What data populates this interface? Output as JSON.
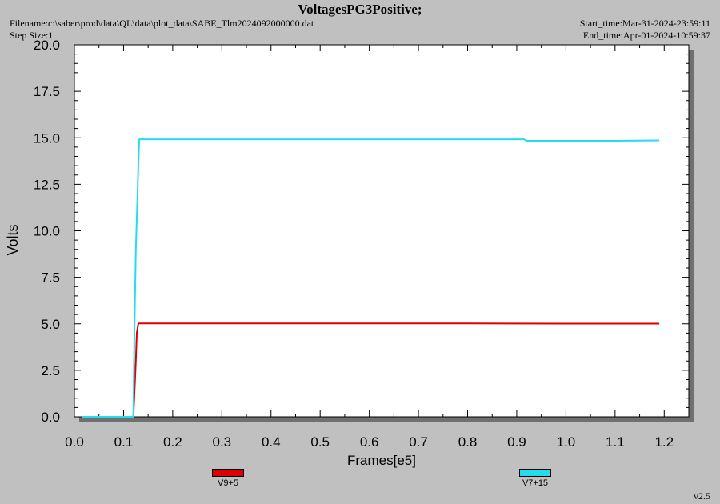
{
  "header": {
    "title": "VoltagesPG3Positive;",
    "filename": "Filename:c:\\saber\\prod\\data\\QL\\data\\plot_data\\SABE_Tlm2024092000000.dat",
    "step_size": "Step Size:1",
    "start_time": "Start_time:Mar-31-2024-23:59:11",
    "end_time": "End_time:Apr-01-2024-10:59:37"
  },
  "version": "v2.5",
  "chart_data": {
    "type": "line",
    "xlabel": "Frames[e5]",
    "ylabel": "Volts",
    "xlim": [
      0.0,
      1.25
    ],
    "ylim": [
      0.0,
      20.0
    ],
    "xticks": [
      "0.0",
      "0.1",
      "0.2",
      "0.3",
      "0.4",
      "0.5",
      "0.6",
      "0.7",
      "0.8",
      "0.9",
      "1.0",
      "1.1",
      "1.2"
    ],
    "yticks": [
      "0.0",
      "2.5",
      "5.0",
      "7.5",
      "10.0",
      "12.5",
      "15.0",
      "17.5",
      "20.0"
    ],
    "legend_position": "bottom",
    "grid": false,
    "series": [
      {
        "name": "V9+5",
        "color": "#dd0000",
        "x": [
          0.015,
          0.12,
          0.123,
          0.125,
          0.127,
          0.13,
          0.2,
          0.5,
          0.8,
          1.0,
          1.19
        ],
        "y": [
          0.0,
          0.0,
          1.8,
          3.0,
          4.5,
          5.02,
          5.02,
          5.02,
          5.02,
          5.01,
          5.01
        ]
      },
      {
        "name": "V7+15",
        "color": "#22ddee",
        "x": [
          0.015,
          0.12,
          0.122,
          0.125,
          0.128,
          0.13,
          0.132,
          0.2,
          0.5,
          0.8,
          0.915,
          0.92,
          1.0,
          1.1,
          1.19
        ],
        "y": [
          0.0,
          0.0,
          4.5,
          9.0,
          11.5,
          13.5,
          14.92,
          14.92,
          14.92,
          14.92,
          14.92,
          14.84,
          14.84,
          14.84,
          14.86
        ]
      }
    ]
  }
}
